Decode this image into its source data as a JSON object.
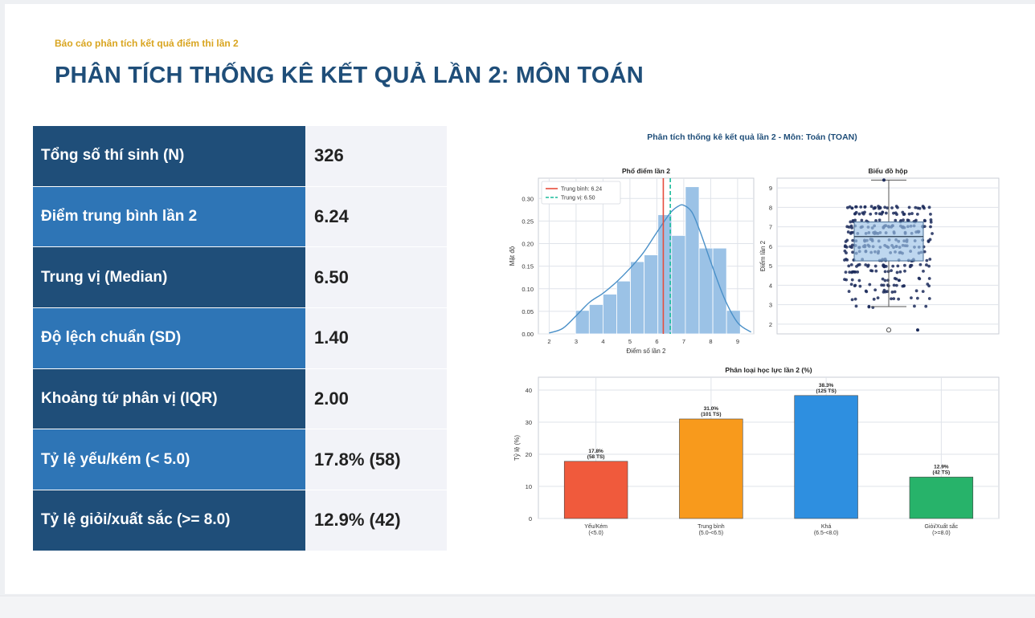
{
  "header": {
    "subtitle": "Báo cáo phân tích kết quả điểm thi lần 2",
    "title": "PHÂN TÍCH THỐNG KÊ KẾT QUẢ LẦN 2: MÔN TOÁN"
  },
  "stats": [
    {
      "label": "Tổng số thí sinh (N)",
      "value": "326"
    },
    {
      "label": "Điểm trung bình lần 2",
      "value": "6.24"
    },
    {
      "label": "Trung vị (Median)",
      "value": "6.50"
    },
    {
      "label": "Độ lệch chuẩn (SD)",
      "value": "1.40"
    },
    {
      "label": "Khoảng tứ phân vị (IQR)",
      "value": "2.00"
    },
    {
      "label": "Tỷ lệ yếu/kém (< 5.0)",
      "value": "17.8% (58)"
    },
    {
      "label": "Tỷ lệ giỏi/xuất sắc (>= 8.0)",
      "value": "12.9% (42)"
    }
  ],
  "colors": {
    "title": "#1f4e79",
    "subtitle": "#d9a520",
    "label_dark": "#1f4e79",
    "label_light": "#2e75b6",
    "hist_bar": "#9bc2e6",
    "mean_line": "#e74c3c",
    "median_line": "#1abc9c"
  },
  "figure_title": "Phân tích thống kê kết quả lần 2 - Môn: Toán (TOAN)",
  "chart_data": [
    {
      "type": "bar",
      "subtype": "histogram",
      "title": "Phổ điểm lần 2",
      "xlabel": "Điểm số lần 2",
      "ylabel": "Mật độ",
      "xlim": [
        1.6,
        9.6
      ],
      "ylim": [
        0,
        0.345
      ],
      "xticks": [
        "2",
        "3",
        "4",
        "5",
        "6",
        "7",
        "8",
        "9"
      ],
      "yticks": [
        "0.00",
        "0.05",
        "0.10",
        "0.15",
        "0.20",
        "0.25",
        "0.30"
      ],
      "bin_edges": [
        2.98,
        3.49,
        4.0,
        4.51,
        5.02,
        5.53,
        6.04,
        6.55,
        7.06,
        7.57,
        8.08,
        8.59,
        9.1
      ],
      "values": [
        0.052,
        0.065,
        0.088,
        0.117,
        0.16,
        0.175,
        0.264,
        0.218,
        0.326,
        0.19,
        0.19,
        0.052
      ],
      "kde": {
        "x": [
          2.0,
          2.5,
          3.0,
          3.5,
          4.0,
          4.5,
          5.0,
          5.5,
          6.0,
          6.5,
          6.8,
          7.0,
          7.3,
          7.6,
          8.0,
          8.5,
          9.0,
          9.5
        ],
        "y": [
          0.002,
          0.012,
          0.04,
          0.07,
          0.09,
          0.115,
          0.145,
          0.18,
          0.225,
          0.268,
          0.283,
          0.285,
          0.27,
          0.228,
          0.16,
          0.08,
          0.025,
          0.004
        ]
      },
      "mean": 6.24,
      "median": 6.5,
      "legend": [
        "Trung bình: 6.24",
        "Trung vị: 6.50"
      ],
      "legend_position": "top-left",
      "grid": true
    },
    {
      "type": "box",
      "title": "Biểu đồ hộp",
      "ylabel": "Điểm lần 2",
      "ylim": [
        1.5,
        9.5
      ],
      "yticks": [
        "2",
        "3",
        "4",
        "5",
        "6",
        "7",
        "8",
        "9"
      ],
      "q1": 5.25,
      "median": 6.5,
      "q3": 7.25,
      "whisker_low": 2.9,
      "whisker_high": 9.4,
      "outliers": [
        1.7,
        1.7
      ],
      "grid": true
    },
    {
      "type": "bar",
      "title": "Phân loại học lực lần 2 (%)",
      "ylabel": "Tỷ lệ (%)",
      "ylim": [
        0,
        44
      ],
      "yticks": [
        "0",
        "10",
        "20",
        "30",
        "40"
      ],
      "categories": [
        "Yếu/Kém\n(<5.0)",
        "Trung bình\n(5.0-<6.5)",
        "Khá\n(6.5-<8.0)",
        "Giỏi/Xuất sắc\n(>=8.0)"
      ],
      "values": [
        17.8,
        31.0,
        38.3,
        12.9
      ],
      "data_labels": [
        "17.8%\n(58 TS)",
        "31.0%\n(101 TS)",
        "38.3%\n(125 TS)",
        "12.9%\n(42 TS)"
      ],
      "colors": [
        "#f05a3c",
        "#f89a1c",
        "#2e8fe0",
        "#27b36a"
      ],
      "grid": true
    }
  ]
}
